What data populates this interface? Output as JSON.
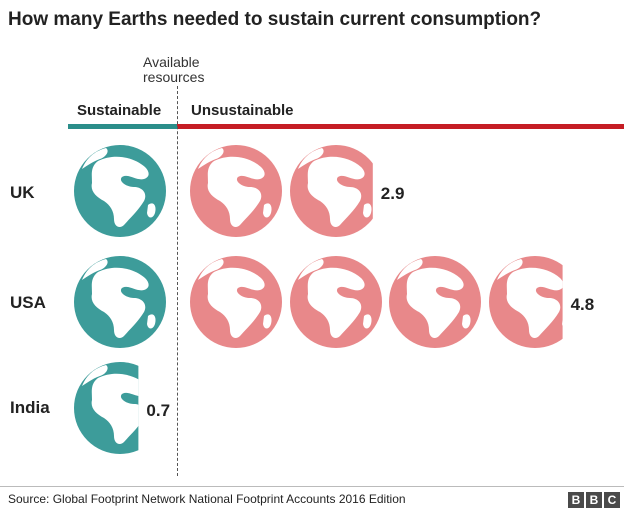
{
  "title": "How many Earths needed to sustain current consumption?",
  "divider_label": [
    "Available",
    "resources"
  ],
  "bands": {
    "sustainable": "Sustainable",
    "unsustainable": "Unsustainable"
  },
  "source": "Source: Global Footprint Network National Footprint Accounts 2016 Edition",
  "logo": [
    "B",
    "B",
    "C"
  ],
  "colors": {
    "sustainable": "#3d9c9a",
    "unsustainable": "#e8888a",
    "band_sustainable": "#2b8e8a",
    "band_unsustainable": "#c51d24",
    "land": "#ffffff"
  },
  "chart_data": {
    "type": "pictogram",
    "unit": "Earths",
    "threshold": 1,
    "categories": [
      "UK",
      "USA",
      "India"
    ],
    "values": [
      2.9,
      4.8,
      0.7
    ],
    "value_labels": [
      "2.9",
      "4.8",
      "0.7"
    ]
  }
}
